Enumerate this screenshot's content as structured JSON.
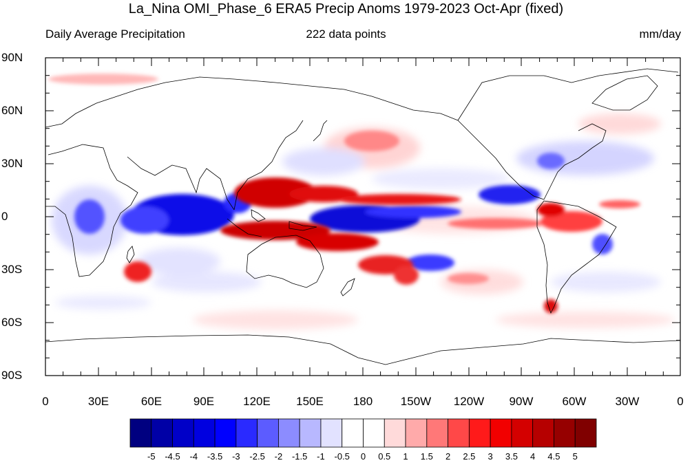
{
  "title": "La_Nina OMI_Phase_6 ERA5 Precip Anoms 1979-2023 Oct-Apr (fixed)",
  "subtitle_left": "Daily Average Precipitation",
  "subtitle_center": "222 data points",
  "subtitle_right": "mm/day",
  "lat_labels": [
    "90N",
    "60N",
    "30N",
    "0",
    "30S",
    "60S",
    "90S"
  ],
  "lon_labels": [
    "0",
    "30E",
    "60E",
    "90E",
    "120E",
    "150E",
    "180",
    "150W",
    "120W",
    "90W",
    "60W",
    "30W",
    "0"
  ],
  "colorbar": {
    "labels": [
      "-5",
      "-4.5",
      "-4",
      "-3.5",
      "-3",
      "-2.5",
      "-2",
      "-1.5",
      "-1",
      "-0.5",
      "0",
      "0.5",
      "1",
      "1.5",
      "2",
      "2.5",
      "3",
      "3.5",
      "4",
      "4.5",
      "5"
    ],
    "colors": [
      "#000080",
      "#0000a6",
      "#0000c8",
      "#0000e0",
      "#0000ff",
      "#2a2aff",
      "#5c5cff",
      "#8c8cff",
      "#b8b8ff",
      "#e2e2ff",
      "#ffffff",
      "#ffffff",
      "#ffdada",
      "#ffaaaa",
      "#ff7878",
      "#ff4848",
      "#ff1a1a",
      "#f20000",
      "#d40000",
      "#b60000",
      "#960000",
      "#800000"
    ]
  },
  "colors": {
    "positive_anomaly": "#e00000",
    "negative_anomaly": "#1a1aff",
    "coastline": "#000000"
  }
}
